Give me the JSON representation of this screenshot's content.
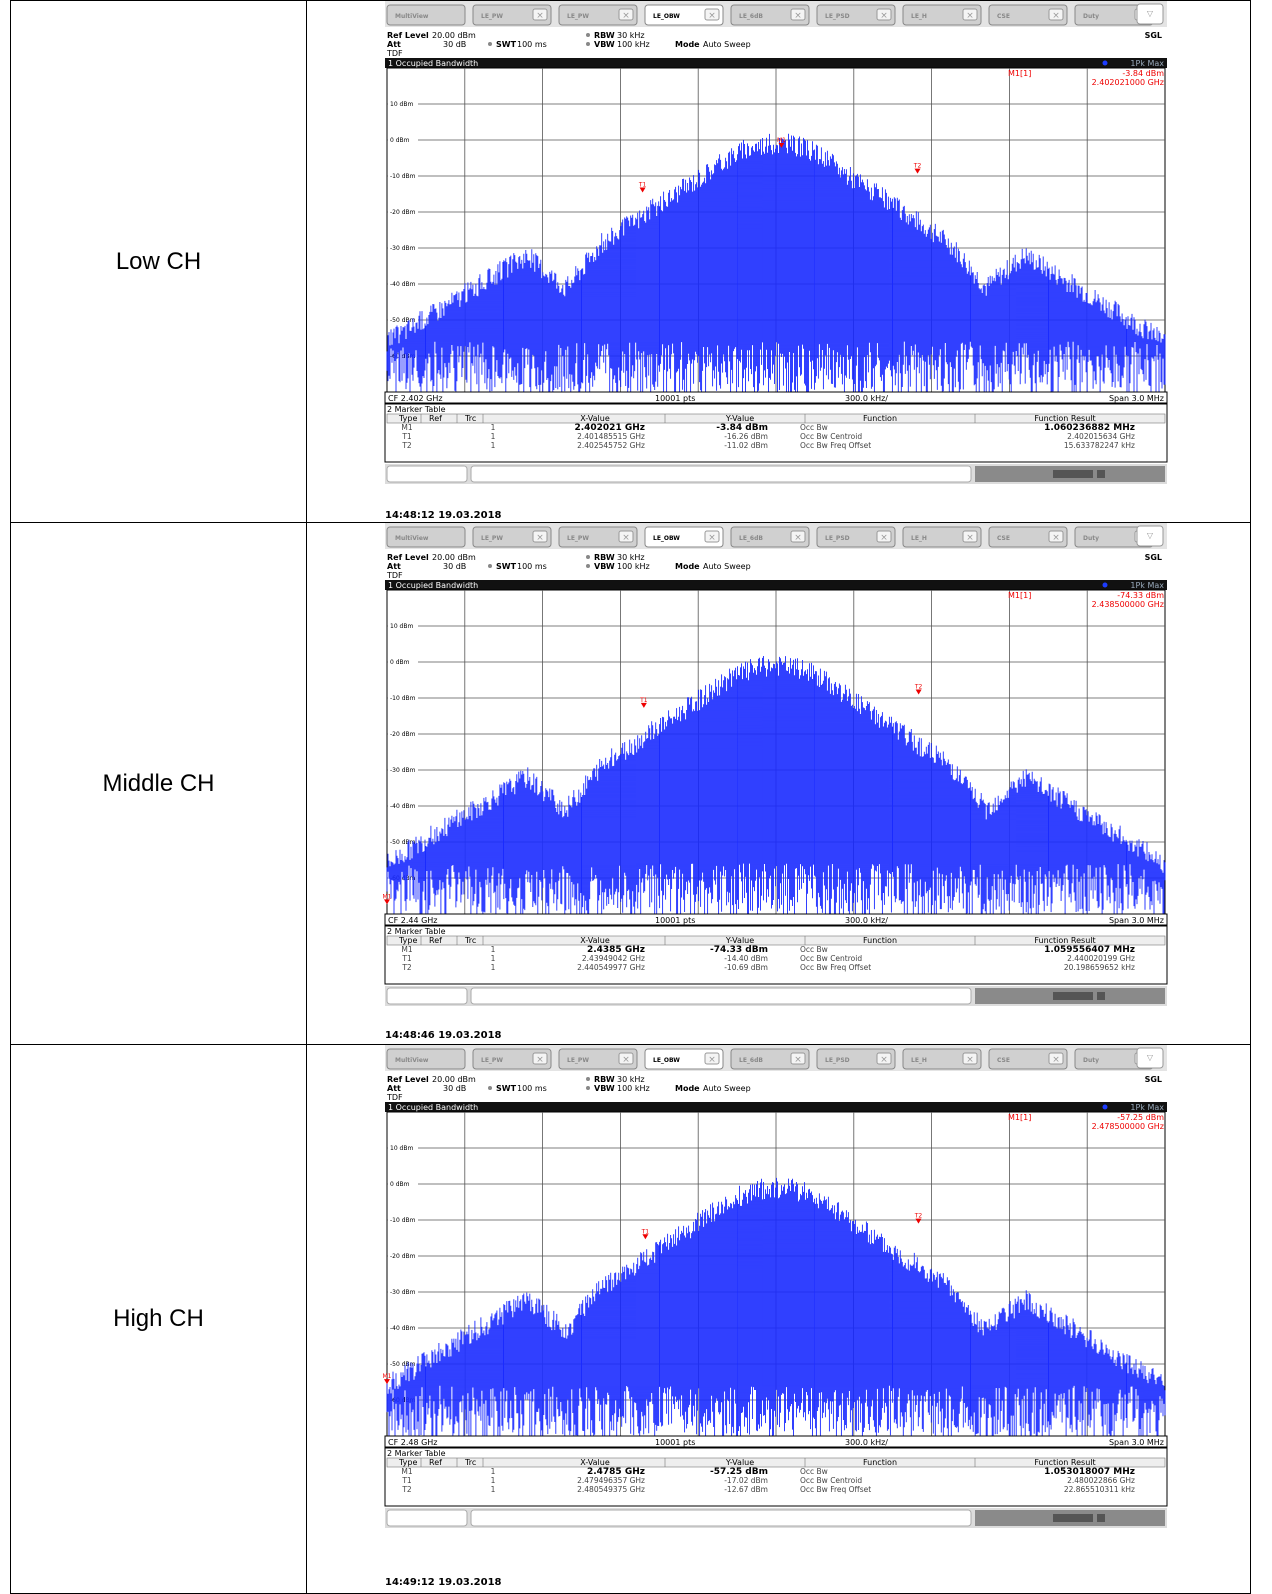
{
  "tabs": [
    "MultiView",
    "LE_PW",
    "LE_PW",
    "LE_OBW",
    "LE_6dB",
    "LE_PSD",
    "LE_H",
    "CSE",
    "Duty"
  ],
  "settings": {
    "ref_level_label": "Ref Level",
    "ref_level_value": "20.00 dBm",
    "att_label": "Att",
    "att_value": "30 dB",
    "swt_label": "SWT",
    "swt_value": "100 ms",
    "rbw_label": "RBW",
    "rbw_value": "30 kHz",
    "vbw_label": "VBW",
    "vbw_value": "100 kHz",
    "mode_label": "Mode",
    "mode_value": "Auto Sweep",
    "tdf": "TDF",
    "sgl": "SGL"
  },
  "trace_label": "1Pk Max",
  "window_title": "1 Occupied Bandwidth",
  "footer": {
    "pts": "10001 pts",
    "div": "300.0 kHz/",
    "span": "Span 3.0 MHz"
  },
  "marker_table": {
    "title": "2 Marker Table",
    "headers": [
      "Type",
      "Ref",
      "Trc",
      "X-Value",
      "Y-Value",
      "Function",
      "Function Result"
    ]
  },
  "chart_data": [
    {
      "type": "line",
      "channel_label": "Low CH",
      "x_unit": "GHz",
      "y_unit": "dBm",
      "ylim": [
        -70,
        20
      ],
      "y_ticks": [
        "10 dBm",
        "0 dBm",
        "-10 dBm",
        "-20 dBm",
        "-30 dBm",
        "-40 dBm",
        "-50 dBm",
        "-60 dBm"
      ],
      "cf_label": "CF 2.402 GHz",
      "center_ghz": 2.402,
      "span_mhz": 3.0,
      "grid": true,
      "marker_readout": {
        "name": "M1[1]",
        "level": "-3.84 dBm",
        "freq": "2.402021000 GHz"
      },
      "markers": [
        {
          "name": "M1",
          "x": 2.402021,
          "y": -3.84
        },
        {
          "name": "T1",
          "x": 2.401485515,
          "y": -16.26
        },
        {
          "name": "T2",
          "x": 2.402545752,
          "y": -11.02
        }
      ],
      "rows": [
        [
          "M1",
          "",
          "1",
          "2.402021 GHz",
          "-3.84 dBm",
          "Occ Bw",
          "1.060236882 MHz"
        ],
        [
          "T1",
          "",
          "1",
          "2.401485515 GHz",
          "-16.26 dBm",
          "Occ Bw Centroid",
          "2.402015634 GHz"
        ],
        [
          "T2",
          "",
          "1",
          "2.402545752 GHz",
          "-11.02 dBm",
          "Occ Bw Freq Offset",
          "15.633782247 kHz"
        ]
      ],
      "timestamp": "14:48:12  19.03.2018"
    },
    {
      "type": "line",
      "channel_label": "Middle CH",
      "x_unit": "GHz",
      "y_unit": "dBm",
      "ylim": [
        -70,
        20
      ],
      "y_ticks": [
        "10 dBm",
        "0 dBm",
        "-10 dBm",
        "-20 dBm",
        "-30 dBm",
        "-40 dBm",
        "-50 dBm",
        "-60 dBm"
      ],
      "cf_label": "CF 2.44 GHz",
      "center_ghz": 2.44,
      "span_mhz": 3.0,
      "grid": true,
      "marker_readout": {
        "name": "M1[1]",
        "level": "-74.33 dBm",
        "freq": "2.438500000 GHz"
      },
      "markers": [
        {
          "name": "M1",
          "x": 2.4385,
          "y": -74.33
        },
        {
          "name": "T1",
          "x": 2.43949042,
          "y": -14.4
        },
        {
          "name": "T2",
          "x": 2.440549977,
          "y": -10.69
        }
      ],
      "rows": [
        [
          "M1",
          "",
          "1",
          "2.4385 GHz",
          "-74.33 dBm",
          "Occ Bw",
          "1.059556407 MHz"
        ],
        [
          "T1",
          "",
          "1",
          "2.43949042 GHz",
          "-14.40 dBm",
          "Occ Bw Centroid",
          "2.440020199 GHz"
        ],
        [
          "T2",
          "",
          "1",
          "2.440549977 GHz",
          "-10.69 dBm",
          "Occ Bw Freq Offset",
          "20.198659652 kHz"
        ]
      ],
      "timestamp": "14:48:46  19.03.2018"
    },
    {
      "type": "line",
      "channel_label": "High CH",
      "x_unit": "GHz",
      "y_unit": "dBm",
      "ylim": [
        -70,
        20
      ],
      "y_ticks": [
        "10 dBm",
        "0 dBm",
        "-10 dBm",
        "-20 dBm",
        "-30 dBm",
        "-40 dBm",
        "-50 dBm",
        "-60 dBm"
      ],
      "cf_label": "CF 2.48 GHz",
      "center_ghz": 2.48,
      "span_mhz": 3.0,
      "grid": true,
      "marker_readout": {
        "name": "M1[1]",
        "level": "-57.25 dBm",
        "freq": "2.478500000 GHz"
      },
      "markers": [
        {
          "name": "M1",
          "x": 2.4785,
          "y": -57.25
        },
        {
          "name": "T1",
          "x": 2.479496357,
          "y": -17.02
        },
        {
          "name": "T2",
          "x": 2.480549375,
          "y": -12.67
        }
      ],
      "rows": [
        [
          "M1",
          "",
          "1",
          "2.4785 GHz",
          "-57.25 dBm",
          "Occ Bw",
          "1.053018007 MHz"
        ],
        [
          "T1",
          "",
          "1",
          "2.479496357 GHz",
          "-17.02 dBm",
          "Occ Bw Centroid",
          "2.480022866 GHz"
        ],
        [
          "T2",
          "",
          "1",
          "2.480549375 GHz",
          "-12.67 dBm",
          "Occ Bw Freq Offset",
          "22.865510311 kHz"
        ]
      ],
      "timestamp": "14:49:12  19.03.2018"
    }
  ]
}
